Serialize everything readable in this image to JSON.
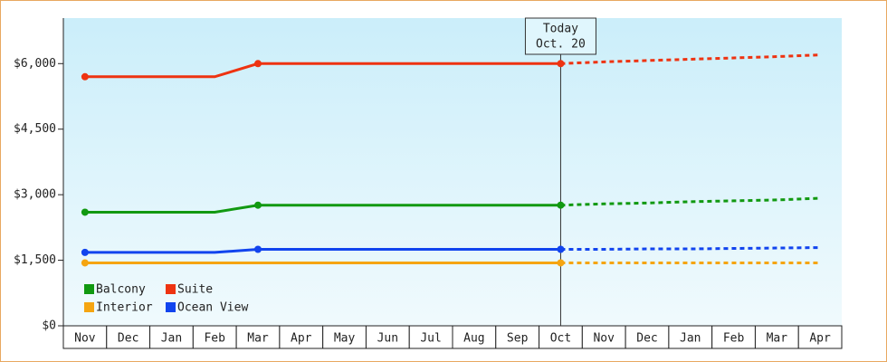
{
  "chart_data": {
    "type": "line",
    "categories": [
      "Nov",
      "Dec",
      "Jan",
      "Feb",
      "Mar",
      "Apr",
      "May",
      "Jun",
      "Jul",
      "Aug",
      "Sep",
      "Oct",
      "Nov",
      "Dec",
      "Jan",
      "Feb",
      "Mar",
      "Apr"
    ],
    "ylim": [
      0,
      7000
    ],
    "yticks": [
      {
        "value": 0,
        "label": "$0"
      },
      {
        "value": 1500,
        "label": "$1,500"
      },
      {
        "value": 3000,
        "label": "$3,000"
      },
      {
        "value": 4500,
        "label": "$4,500"
      },
      {
        "value": 6000,
        "label": "$6,000"
      }
    ],
    "annotation": [
      "Today",
      "Oct. 20"
    ],
    "series": [
      {
        "name": "Balcony",
        "color": "#119911",
        "values": [
          2600,
          2600,
          2600,
          2600,
          2760,
          2760,
          2760,
          2760,
          2760,
          2760,
          2760,
          2760,
          null,
          null,
          null,
          null,
          null,
          null
        ],
        "forecast": [
          null,
          null,
          null,
          null,
          null,
          null,
          null,
          null,
          null,
          null,
          null,
          2760,
          2790,
          2810,
          2840,
          2860,
          2880,
          2920
        ]
      },
      {
        "name": "Suite",
        "color": "#ee3311",
        "values": [
          5700,
          5700,
          5700,
          5700,
          6000,
          6000,
          6000,
          6000,
          6000,
          6000,
          6000,
          6000,
          null,
          null,
          null,
          null,
          null,
          null
        ],
        "forecast": [
          null,
          null,
          null,
          null,
          null,
          null,
          null,
          null,
          null,
          null,
          null,
          6000,
          6040,
          6070,
          6100,
          6130,
          6160,
          6200
        ]
      },
      {
        "name": "Interior",
        "color": "#f5a511",
        "values": [
          1440,
          1440,
          1440,
          1440,
          1440,
          1440,
          1440,
          1440,
          1440,
          1440,
          1440,
          1440,
          null,
          null,
          null,
          null,
          null,
          null
        ],
        "forecast": [
          null,
          null,
          null,
          null,
          null,
          null,
          null,
          null,
          null,
          null,
          null,
          1440,
          1440,
          1440,
          1440,
          1440,
          1440,
          1440
        ]
      },
      {
        "name": "Ocean View",
        "color": "#1144ee",
        "values": [
          1680,
          1680,
          1680,
          1680,
          1750,
          1750,
          1750,
          1750,
          1750,
          1750,
          1750,
          1750,
          null,
          null,
          null,
          null,
          null,
          null
        ],
        "forecast": [
          null,
          null,
          null,
          null,
          null,
          null,
          null,
          null,
          null,
          null,
          null,
          1750,
          1750,
          1760,
          1760,
          1770,
          1780,
          1790
        ]
      }
    ]
  }
}
